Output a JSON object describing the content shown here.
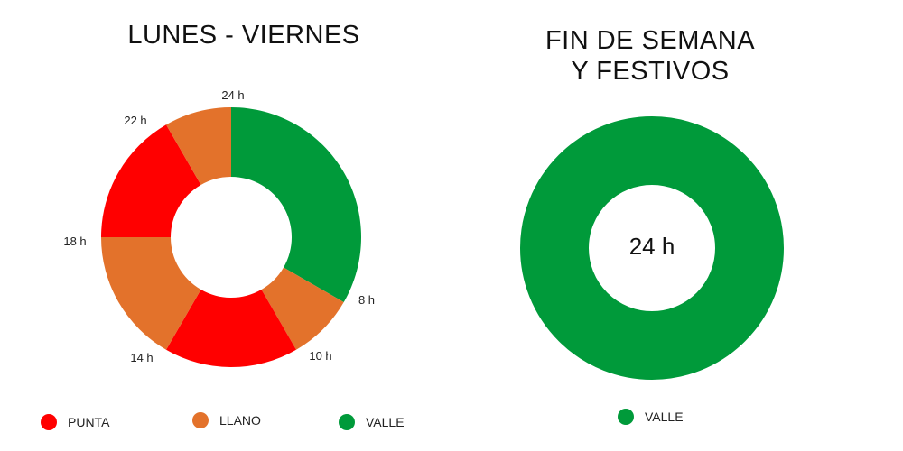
{
  "chart_data": [
    {
      "type": "donut",
      "title": "LUNES - VIERNES",
      "segments": [
        {
          "from": "0 h",
          "to": "8 h",
          "hours": 8,
          "category": "VALLE"
        },
        {
          "from": "8 h",
          "to": "10 h",
          "hours": 2,
          "category": "LLANO"
        },
        {
          "from": "10 h",
          "to": "14 h",
          "hours": 4,
          "category": "PUNTA"
        },
        {
          "from": "14 h",
          "to": "18 h",
          "hours": 4,
          "category": "LLANO"
        },
        {
          "from": "18 h",
          "to": "22 h",
          "hours": 4,
          "category": "PUNTA"
        },
        {
          "from": "22 h",
          "to": "24 h",
          "hours": 2,
          "category": "LLANO"
        }
      ],
      "hour_labels": [
        "24 h",
        "8 h",
        "10 h",
        "14 h",
        "18 h",
        "22 h"
      ],
      "legend": [
        {
          "label": "PUNTA",
          "color": "#ff0000"
        },
        {
          "label": "LLANO",
          "color": "#e3722b"
        },
        {
          "label": "VALLE",
          "color": "#009a3a"
        }
      ]
    },
    {
      "type": "donut",
      "title_lines": [
        "FIN DE SEMANA",
        "Y FESTIVOS"
      ],
      "segments": [
        {
          "from": "0 h",
          "to": "24 h",
          "hours": 24,
          "category": "VALLE"
        }
      ],
      "center_label": "24 h",
      "legend": [
        {
          "label": "VALLE",
          "color": "#009a3a"
        }
      ]
    }
  ]
}
